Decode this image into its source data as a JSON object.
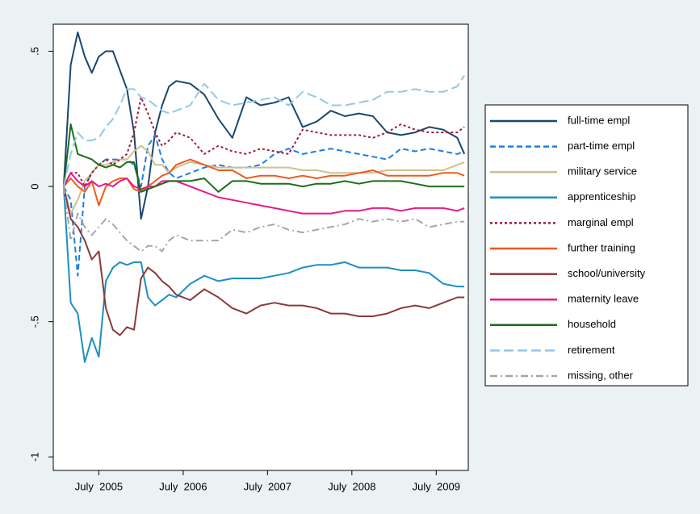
{
  "chart_data": {
    "type": "line",
    "x": [
      2005.083,
      2005.167,
      2005.25,
      2005.333,
      2005.417,
      2005.5,
      2005.583,
      2005.667,
      2005.75,
      2005.833,
      2005.917,
      2006,
      2006.083,
      2006.167,
      2006.25,
      2006.333,
      2006.417,
      2006.583,
      2006.75,
      2006.917,
      2007.083,
      2007.25,
      2007.417,
      2007.583,
      2007.75,
      2007.917,
      2008.083,
      2008.25,
      2008.417,
      2008.583,
      2008.75,
      2008.917,
      2009.083,
      2009.25,
      2009.417,
      2009.583,
      2009.75,
      2009.833
    ],
    "xlim": [
      2004.96,
      2009.88
    ],
    "xticks": [
      {
        "value": 2005.5,
        "label": "July  2005"
      },
      {
        "value": 2006.5,
        "label": "July  2006"
      },
      {
        "value": 2007.5,
        "label": "July  2007"
      },
      {
        "value": 2008.5,
        "label": "July  2008"
      },
      {
        "value": 2009.5,
        "label": "July  2009"
      }
    ],
    "ylim": [
      -1.05,
      0.6
    ],
    "yticks": [
      {
        "value": 0.5,
        "label": ".5"
      },
      0,
      {
        "value": -0.5,
        "label": "-.5"
      },
      -1
    ],
    "legend": "right",
    "series": [
      {
        "name": "full-time empl",
        "color": "#1a476f",
        "dash": "solid",
        "values": [
          0,
          0.45,
          0.57,
          0.48,
          0.42,
          0.48,
          0.5,
          0.5,
          0.43,
          0.36,
          0.2,
          -0.12,
          0.0,
          0.2,
          0.3,
          0.37,
          0.39,
          0.38,
          0.34,
          0.25,
          0.18,
          0.33,
          0.3,
          0.31,
          0.33,
          0.22,
          0.24,
          0.28,
          0.26,
          0.27,
          0.26,
          0.2,
          0.19,
          0.2,
          0.22,
          0.21,
          0.18,
          0.12
        ]
      },
      {
        "name": "part-time empl",
        "color": "#1e7fe0",
        "dash": "dash",
        "values": [
          0,
          -0.05,
          -0.33,
          0.0,
          0.05,
          0.08,
          0.1,
          0.1,
          0.1,
          0.1,
          0.08,
          0.0,
          0.15,
          0.19,
          0.1,
          0.05,
          0.03,
          0.05,
          0.07,
          0.08,
          0.07,
          0.07,
          0.08,
          0.12,
          0.14,
          0.12,
          0.13,
          0.14,
          0.13,
          0.12,
          0.11,
          0.1,
          0.14,
          0.13,
          0.14,
          0.13,
          0.12,
          0.13
        ]
      },
      {
        "name": "military service",
        "color": "#cfc08e",
        "dash": "solid",
        "values": [
          0,
          -0.1,
          -0.05,
          0.02,
          0.05,
          0.08,
          0.08,
          0.09,
          0.1,
          0.1,
          0.13,
          0.15,
          0.13,
          0.08,
          0.08,
          0.05,
          0.07,
          0.09,
          0.08,
          0.07,
          0.07,
          0.07,
          0.07,
          0.07,
          0.07,
          0.06,
          0.06,
          0.05,
          0.05,
          0.05,
          0.05,
          0.06,
          0.06,
          0.06,
          0.06,
          0.06,
          0.08,
          0.09
        ]
      },
      {
        "name": "apprenticeship",
        "color": "#1d8fc3",
        "dash": "solid",
        "values": [
          0,
          -0.43,
          -0.47,
          -0.65,
          -0.56,
          -0.63,
          -0.35,
          -0.3,
          -0.28,
          -0.29,
          -0.28,
          -0.28,
          -0.41,
          -0.44,
          -0.42,
          -0.4,
          -0.41,
          -0.36,
          -0.33,
          -0.35,
          -0.34,
          -0.34,
          -0.34,
          -0.33,
          -0.32,
          -0.3,
          -0.29,
          -0.29,
          -0.28,
          -0.3,
          -0.3,
          -0.3,
          -0.31,
          -0.31,
          -0.32,
          -0.36,
          -0.37,
          -0.37
        ]
      },
      {
        "name": "marginal empl",
        "color": "#a4193d",
        "dash": "dot",
        "values": [
          0,
          0.05,
          0.05,
          0.0,
          0.05,
          0.08,
          0.1,
          0.08,
          0.1,
          0.12,
          0.2,
          0.33,
          0.27,
          0.2,
          0.15,
          0.17,
          0.2,
          0.18,
          0.12,
          0.15,
          0.13,
          0.12,
          0.14,
          0.13,
          0.12,
          0.21,
          0.2,
          0.19,
          0.19,
          0.19,
          0.18,
          0.2,
          0.23,
          0.21,
          0.2,
          0.2,
          0.2,
          0.22
        ]
      },
      {
        "name": "further training",
        "color": "#f05a1e",
        "dash": "solid",
        "values": [
          0,
          0.03,
          0.0,
          -0.02,
          0.02,
          -0.07,
          0.0,
          0.02,
          0.03,
          0.03,
          -0.01,
          -0.02,
          0.0,
          0.02,
          0.04,
          0.05,
          0.08,
          0.1,
          0.08,
          0.06,
          0.06,
          0.03,
          0.04,
          0.04,
          0.03,
          0.04,
          0.03,
          0.04,
          0.04,
          0.05,
          0.06,
          0.04,
          0.04,
          0.04,
          0.04,
          0.05,
          0.05,
          0.04
        ]
      },
      {
        "name": "school/university",
        "color": "#8b3a3a",
        "dash": "solid",
        "values": [
          0,
          -0.12,
          -0.15,
          -0.2,
          -0.27,
          -0.24,
          -0.45,
          -0.53,
          -0.55,
          -0.52,
          -0.53,
          -0.34,
          -0.3,
          -0.32,
          -0.35,
          -0.37,
          -0.4,
          -0.42,
          -0.38,
          -0.41,
          -0.45,
          -0.47,
          -0.44,
          -0.43,
          -0.44,
          -0.44,
          -0.45,
          -0.47,
          -0.47,
          -0.48,
          -0.48,
          -0.47,
          -0.45,
          -0.44,
          -0.45,
          -0.43,
          -0.41,
          -0.41
        ]
      },
      {
        "name": "maternity leave",
        "color": "#e8198a",
        "dash": "solid",
        "values": [
          0,
          0.05,
          0.02,
          0.0,
          0.02,
          0.0,
          0.01,
          0.0,
          0.02,
          0.03,
          0.0,
          -0.01,
          0.0,
          0.0,
          0.02,
          0.02,
          0.02,
          0.0,
          -0.02,
          -0.04,
          -0.05,
          -0.06,
          -0.07,
          -0.08,
          -0.09,
          -0.1,
          -0.1,
          -0.1,
          -0.09,
          -0.09,
          -0.08,
          -0.08,
          -0.09,
          -0.08,
          -0.08,
          -0.08,
          -0.09,
          -0.08
        ]
      },
      {
        "name": "household",
        "color": "#1a6e1a",
        "dash": "solid",
        "values": [
          0,
          0.23,
          0.12,
          0.11,
          0.1,
          0.08,
          0.07,
          0.08,
          0.07,
          0.09,
          0.09,
          -0.02,
          -0.01,
          0.0,
          0.01,
          0.02,
          0.02,
          0.02,
          0.03,
          -0.02,
          0.02,
          0.02,
          0.01,
          0.01,
          0.01,
          0.0,
          0.01,
          0.01,
          0.02,
          0.01,
          0.02,
          0.02,
          0.02,
          0.01,
          0.0,
          0.0,
          0.0,
          0.0
        ]
      },
      {
        "name": "retirement",
        "color": "#93c7e8",
        "dash": "longdash",
        "values": [
          0,
          0.12,
          0.2,
          0.17,
          0.17,
          0.18,
          0.22,
          0.25,
          0.3,
          0.36,
          0.36,
          0.33,
          0.32,
          0.3,
          0.28,
          0.27,
          0.28,
          0.3,
          0.38,
          0.32,
          0.3,
          0.31,
          0.32,
          0.33,
          0.3,
          0.35,
          0.33,
          0.3,
          0.3,
          0.31,
          0.32,
          0.35,
          0.35,
          0.36,
          0.35,
          0.35,
          0.37,
          0.41
        ]
      },
      {
        "name": "missing, other",
        "color": "#a6a6a6",
        "dash": "dashdot",
        "values": [
          0,
          -0.2,
          -0.1,
          -0.15,
          -0.18,
          -0.15,
          -0.12,
          -0.14,
          -0.17,
          -0.2,
          -0.22,
          -0.24,
          -0.22,
          -0.22,
          -0.24,
          -0.2,
          -0.18,
          -0.2,
          -0.2,
          -0.2,
          -0.16,
          -0.17,
          -0.15,
          -0.14,
          -0.16,
          -0.17,
          -0.16,
          -0.15,
          -0.14,
          -0.12,
          -0.13,
          -0.12,
          -0.13,
          -0.12,
          -0.15,
          -0.14,
          -0.13,
          -0.13
        ]
      }
    ]
  }
}
